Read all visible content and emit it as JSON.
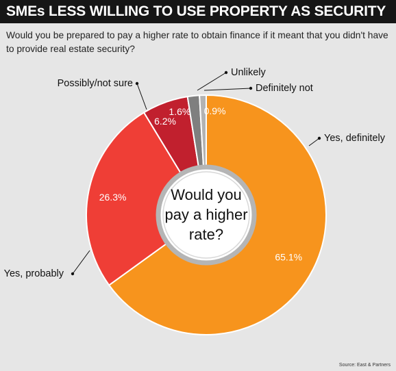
{
  "title": "SMEs LESS WILLING TO USE PROPERTY AS SECURITY",
  "subtitle": "Would you be prepared to pay a higher rate to obtain finance if it meant that you didn't have to provide real estate security?",
  "source": "Source: East & Partners",
  "chart_data": {
    "type": "pie",
    "center_text": [
      "Would you",
      "pay a higher",
      "rate?"
    ],
    "slices": [
      {
        "label": "Yes, definitely",
        "value": 65.1,
        "display": "65.1%",
        "color": "#f7941d"
      },
      {
        "label": "Yes, probably",
        "value": 26.3,
        "display": "26.3%",
        "color": "#ef3e36"
      },
      {
        "label": "Possibly/not sure",
        "value": 6.2,
        "display": "6.2%",
        "color": "#c1202e"
      },
      {
        "label": "Unlikely",
        "value": 1.6,
        "display": "1.6%",
        "color": "#7f7f7f"
      },
      {
        "label": "Definitely not",
        "value": 0.9,
        "display": "0.9%",
        "color": "#b3b3b3"
      }
    ]
  }
}
